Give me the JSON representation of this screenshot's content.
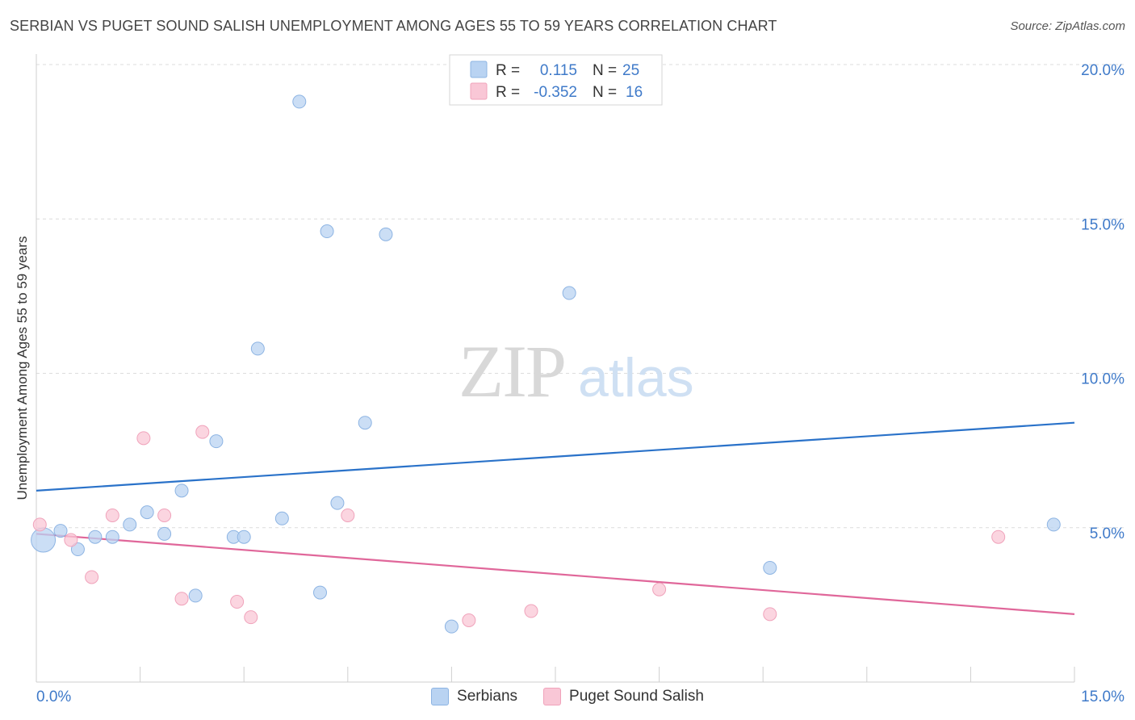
{
  "header": {
    "title": "SERBIAN VS PUGET SOUND SALISH UNEMPLOYMENT AMONG AGES 55 TO 59 YEARS CORRELATION CHART",
    "source": "Source: ZipAtlas.com"
  },
  "watermark": {
    "zip": "ZIP",
    "atlas": "atlas"
  },
  "colors": {
    "serbians_fill": "#b9d3f2",
    "serbians_stroke": "#8db4e3",
    "serbians_line": "#2a72c9",
    "salish_fill": "#f9c7d6",
    "salish_stroke": "#f0a3bb",
    "salish_line": "#e0679a",
    "axis_label_blue": "#3f7ac9"
  },
  "stats_legend": {
    "row1": {
      "r_label": "R =",
      "r_value": "0.115",
      "n_label": "N =",
      "n_value": "25"
    },
    "row2": {
      "r_label": "R =",
      "r_value": "-0.352",
      "n_label": "N =",
      "n_value": "16"
    }
  },
  "chart_data": {
    "type": "scatter",
    "title": "SERBIAN VS PUGET SOUND SALISH UNEMPLOYMENT AMONG AGES 55 TO 59 YEARS CORRELATION CHART",
    "xlabel": "",
    "ylabel": "Unemployment Among Ages 55 to 59 years",
    "xlim": [
      0,
      15
    ],
    "ylim": [
      0,
      20
    ],
    "x_tick_labels": [
      "0.0%",
      "15.0%"
    ],
    "y_tick_labels": [
      "5.0%",
      "10.0%",
      "15.0%",
      "20.0%"
    ],
    "y_ticks": [
      5,
      10,
      15,
      20
    ],
    "grid": "horizontal dashed",
    "series": [
      {
        "name": "Serbians",
        "points": [
          {
            "x": 0.1,
            "y": 4.6,
            "big": true
          },
          {
            "x": 0.35,
            "y": 4.9
          },
          {
            "x": 0.6,
            "y": 4.3
          },
          {
            "x": 0.85,
            "y": 4.7
          },
          {
            "x": 1.1,
            "y": 4.7
          },
          {
            "x": 1.35,
            "y": 5.1
          },
          {
            "x": 1.6,
            "y": 5.5
          },
          {
            "x": 1.85,
            "y": 4.8
          },
          {
            "x": 2.1,
            "y": 6.2
          },
          {
            "x": 2.3,
            "y": 2.8
          },
          {
            "x": 2.6,
            "y": 7.8
          },
          {
            "x": 2.85,
            "y": 4.7
          },
          {
            "x": 3.0,
            "y": 4.7
          },
          {
            "x": 3.2,
            "y": 10.8
          },
          {
            "x": 3.55,
            "y": 5.3
          },
          {
            "x": 3.8,
            "y": 18.8
          },
          {
            "x": 4.1,
            "y": 2.9
          },
          {
            "x": 4.2,
            "y": 14.6
          },
          {
            "x": 4.35,
            "y": 5.8
          },
          {
            "x": 4.75,
            "y": 8.4
          },
          {
            "x": 5.05,
            "y": 14.5
          },
          {
            "x": 6.0,
            "y": 1.8
          },
          {
            "x": 7.7,
            "y": 12.6
          },
          {
            "x": 10.6,
            "y": 3.7
          },
          {
            "x": 14.7,
            "y": 5.1
          }
        ],
        "trend": {
          "y_at_0": 6.2,
          "y_at_15": 8.4
        }
      },
      {
        "name": "Puget Sound Salish",
        "points": [
          {
            "x": 0.05,
            "y": 5.1
          },
          {
            "x": 0.5,
            "y": 4.6
          },
          {
            "x": 0.8,
            "y": 3.4
          },
          {
            "x": 1.1,
            "y": 5.4
          },
          {
            "x": 1.55,
            "y": 7.9
          },
          {
            "x": 1.85,
            "y": 5.4
          },
          {
            "x": 2.1,
            "y": 2.7
          },
          {
            "x": 2.4,
            "y": 8.1
          },
          {
            "x": 2.9,
            "y": 2.6
          },
          {
            "x": 3.1,
            "y": 2.1
          },
          {
            "x": 4.5,
            "y": 5.4
          },
          {
            "x": 6.25,
            "y": 2.0
          },
          {
            "x": 7.15,
            "y": 2.3
          },
          {
            "x": 9.0,
            "y": 3.0
          },
          {
            "x": 10.6,
            "y": 2.2
          },
          {
            "x": 13.9,
            "y": 4.7
          }
        ],
        "trend": {
          "y_at_0": 4.8,
          "y_at_15": 2.2
        }
      }
    ]
  },
  "legend": {
    "serbians": "Serbians",
    "salish": "Puget Sound Salish"
  }
}
